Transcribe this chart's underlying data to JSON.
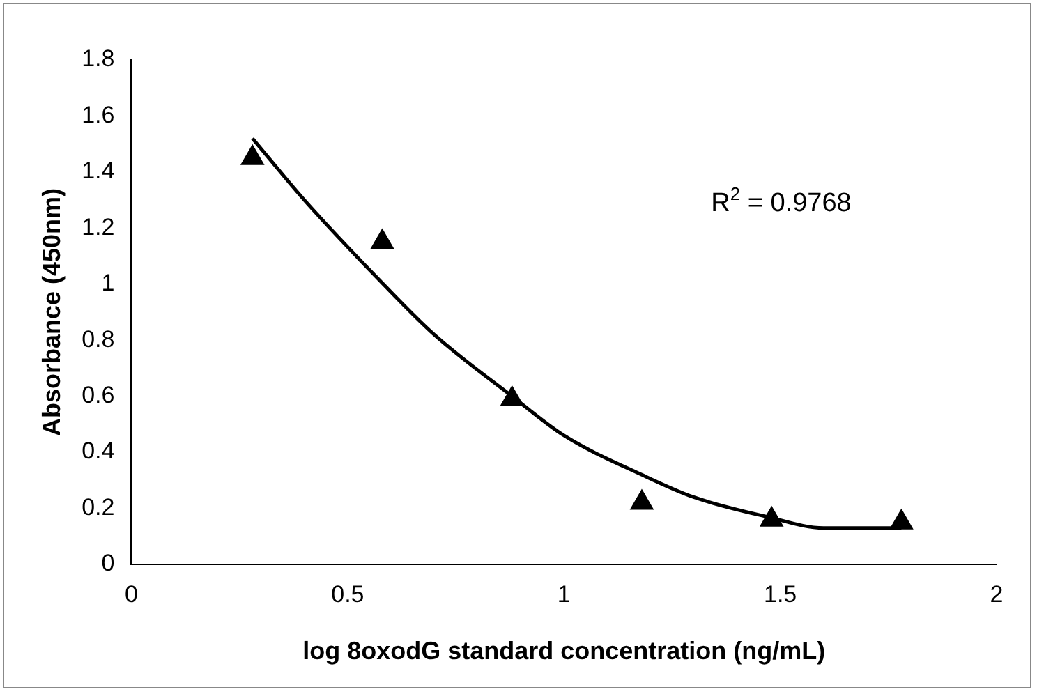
{
  "chart_data": {
    "type": "scatter",
    "xlabel": "log 8oxodG standard concentration (ng/mL)",
    "ylabel": "Absorbance (450nm)",
    "xlim": [
      0,
      2
    ],
    "xticks": [
      0,
      0.5,
      1,
      1.5,
      2
    ],
    "ylim": [
      0,
      1.8
    ],
    "yticks": [
      0,
      0.2,
      0.4,
      0.6,
      0.8,
      1,
      1.2,
      1.4,
      1.6,
      1.8
    ],
    "grid": false,
    "legend": false,
    "marker": "triangle",
    "series": [
      {
        "type": "scatter",
        "color": "#000000",
        "x": [
          0.28,
          0.58,
          0.88,
          1.18,
          1.48,
          1.78
        ],
        "values": [
          1.45,
          1.15,
          0.59,
          0.22,
          0.16,
          0.15
        ]
      },
      {
        "type": "line",
        "color": "#000000",
        "marker": "none",
        "line_style": "solid",
        "x": [
          0.28,
          0.4,
          0.57,
          0.7,
          0.88,
          1.0,
          1.18,
          1.3,
          1.47,
          1.6,
          1.78
        ],
        "values": [
          1.52,
          1.3,
          1.02,
          0.82,
          0.6,
          0.46,
          0.32,
          0.24,
          0.17,
          0.13,
          0.13
        ]
      }
    ],
    "annotations": [
      "R$^{2}$ = 0.9768"
    ]
  }
}
